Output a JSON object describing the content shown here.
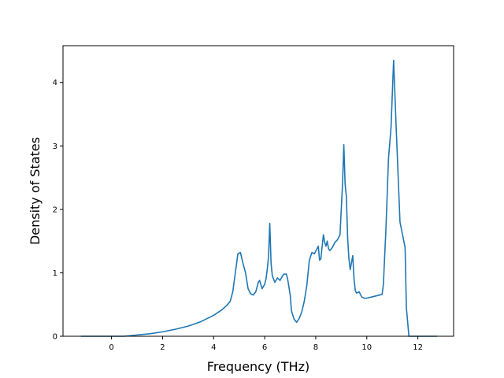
{
  "chart_data": {
    "type": "line",
    "title": "",
    "xlabel": "Frequency (THz)",
    "ylabel": "Density of States",
    "xlim": [
      -1.9,
      13.4
    ],
    "ylim": [
      0,
      4.58
    ],
    "xticks": [
      0,
      2,
      4,
      6,
      8,
      10,
      12
    ],
    "yticks": [
      0,
      1,
      2,
      3,
      4
    ],
    "grid": false,
    "legend": "none",
    "colors": {
      "line": "#1f77b4",
      "axes": "#000000",
      "background": "#ffffff"
    },
    "series": [
      {
        "x": [
          -1.2,
          -0.6,
          0.0,
          0.5,
          1.0,
          1.5,
          2.0,
          2.5,
          3.0,
          3.5,
          4.0,
          4.3,
          4.5,
          4.65,
          4.75,
          4.85,
          4.95,
          5.05,
          5.15,
          5.25,
          5.35,
          5.45,
          5.55,
          5.65,
          5.75,
          5.8,
          5.9,
          6.0,
          6.05,
          6.1,
          6.15,
          6.2,
          6.25,
          6.3,
          6.4,
          6.5,
          6.6,
          6.7,
          6.75,
          6.85,
          6.9,
          7.0,
          7.05,
          7.15,
          7.25,
          7.35,
          7.45,
          7.55,
          7.65,
          7.75,
          7.85,
          7.95,
          8.05,
          8.1,
          8.15,
          8.2,
          8.3,
          8.35,
          8.4,
          8.45,
          8.5,
          8.55,
          8.65,
          8.75,
          8.85,
          8.95,
          9.05,
          9.1,
          9.15,
          9.2,
          9.25,
          9.3,
          9.35,
          9.45,
          9.5,
          9.55,
          9.6,
          9.7,
          9.8,
          9.9,
          10.0,
          10.2,
          10.4,
          10.6,
          10.65,
          10.75,
          10.85,
          10.95,
          11.05,
          11.15,
          11.3,
          11.4,
          11.5,
          11.55,
          11.65,
          12.0,
          12.4,
          12.75
        ],
        "values": [
          0.0,
          0.0,
          0.0,
          0.0,
          0.02,
          0.04,
          0.07,
          0.11,
          0.16,
          0.23,
          0.33,
          0.41,
          0.48,
          0.55,
          0.7,
          1.0,
          1.3,
          1.32,
          1.15,
          1.0,
          0.75,
          0.67,
          0.65,
          0.7,
          0.85,
          0.88,
          0.75,
          0.82,
          0.9,
          1.05,
          1.25,
          1.78,
          1.15,
          0.95,
          0.85,
          0.92,
          0.88,
          0.95,
          0.98,
          0.98,
          0.9,
          0.65,
          0.4,
          0.27,
          0.22,
          0.28,
          0.38,
          0.55,
          0.8,
          1.2,
          1.32,
          1.3,
          1.38,
          1.42,
          1.2,
          1.22,
          1.6,
          1.48,
          1.42,
          1.5,
          1.38,
          1.35,
          1.4,
          1.48,
          1.52,
          1.6,
          2.4,
          3.02,
          2.4,
          2.2,
          1.55,
          1.22,
          1.05,
          1.27,
          0.9,
          0.72,
          0.68,
          0.7,
          0.62,
          0.6,
          0.6,
          0.62,
          0.64,
          0.66,
          0.82,
          1.7,
          2.8,
          3.3,
          4.35,
          3.3,
          1.8,
          1.6,
          1.4,
          0.45,
          0.0,
          0.0,
          0.0,
          0.0
        ]
      }
    ]
  }
}
